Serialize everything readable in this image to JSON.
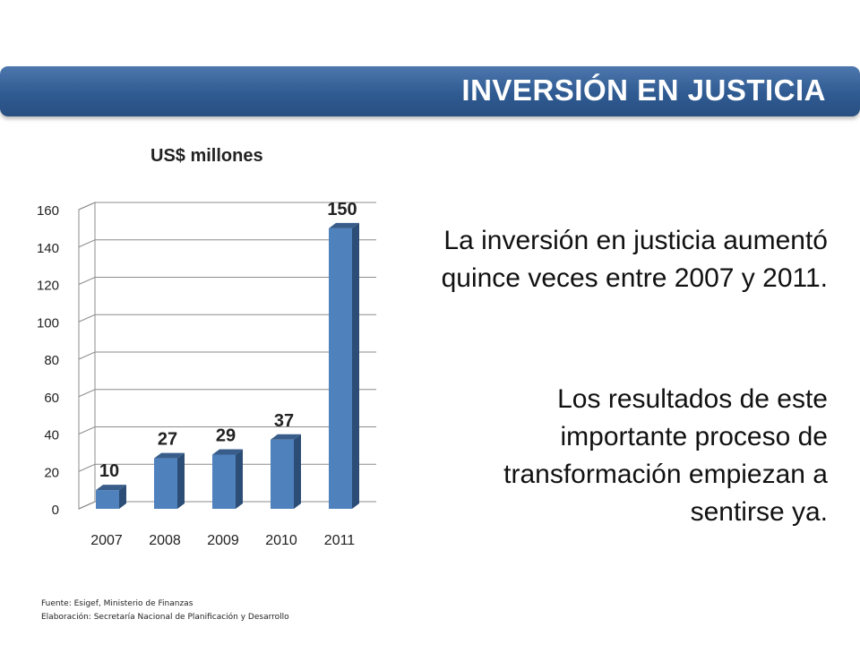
{
  "slide": {
    "title": "INVERSIÓN EN JUSTICIA",
    "paragraphs": [
      "La inversión en justicia aumentó quince veces entre 2007 y 2011.",
      "Los resultados de este importante proceso de transformación empiezan a sentirse ya."
    ],
    "footer": {
      "source": "Fuente: Esigef, Ministerio de Finanzas",
      "elaboration": "Elaboración: Secretaría Nacional de Planificación y Desarrollo"
    }
  },
  "chart_data": {
    "type": "bar",
    "title": "US$ millones",
    "categories": [
      "2007",
      "2008",
      "2009",
      "2010",
      "2011"
    ],
    "values": [
      10,
      27,
      29,
      37,
      150
    ],
    "data_labels": [
      "10",
      "27",
      "29",
      "37",
      "150"
    ],
    "ylim": [
      0,
      160
    ],
    "yticks": [
      0,
      20,
      40,
      60,
      80,
      100,
      120,
      140,
      160
    ],
    "grid": true,
    "legend": "none",
    "colors": {
      "bar_front": "#4f81bd",
      "bar_side": "#2c4d75",
      "bar_top": "#385d8a"
    }
  }
}
